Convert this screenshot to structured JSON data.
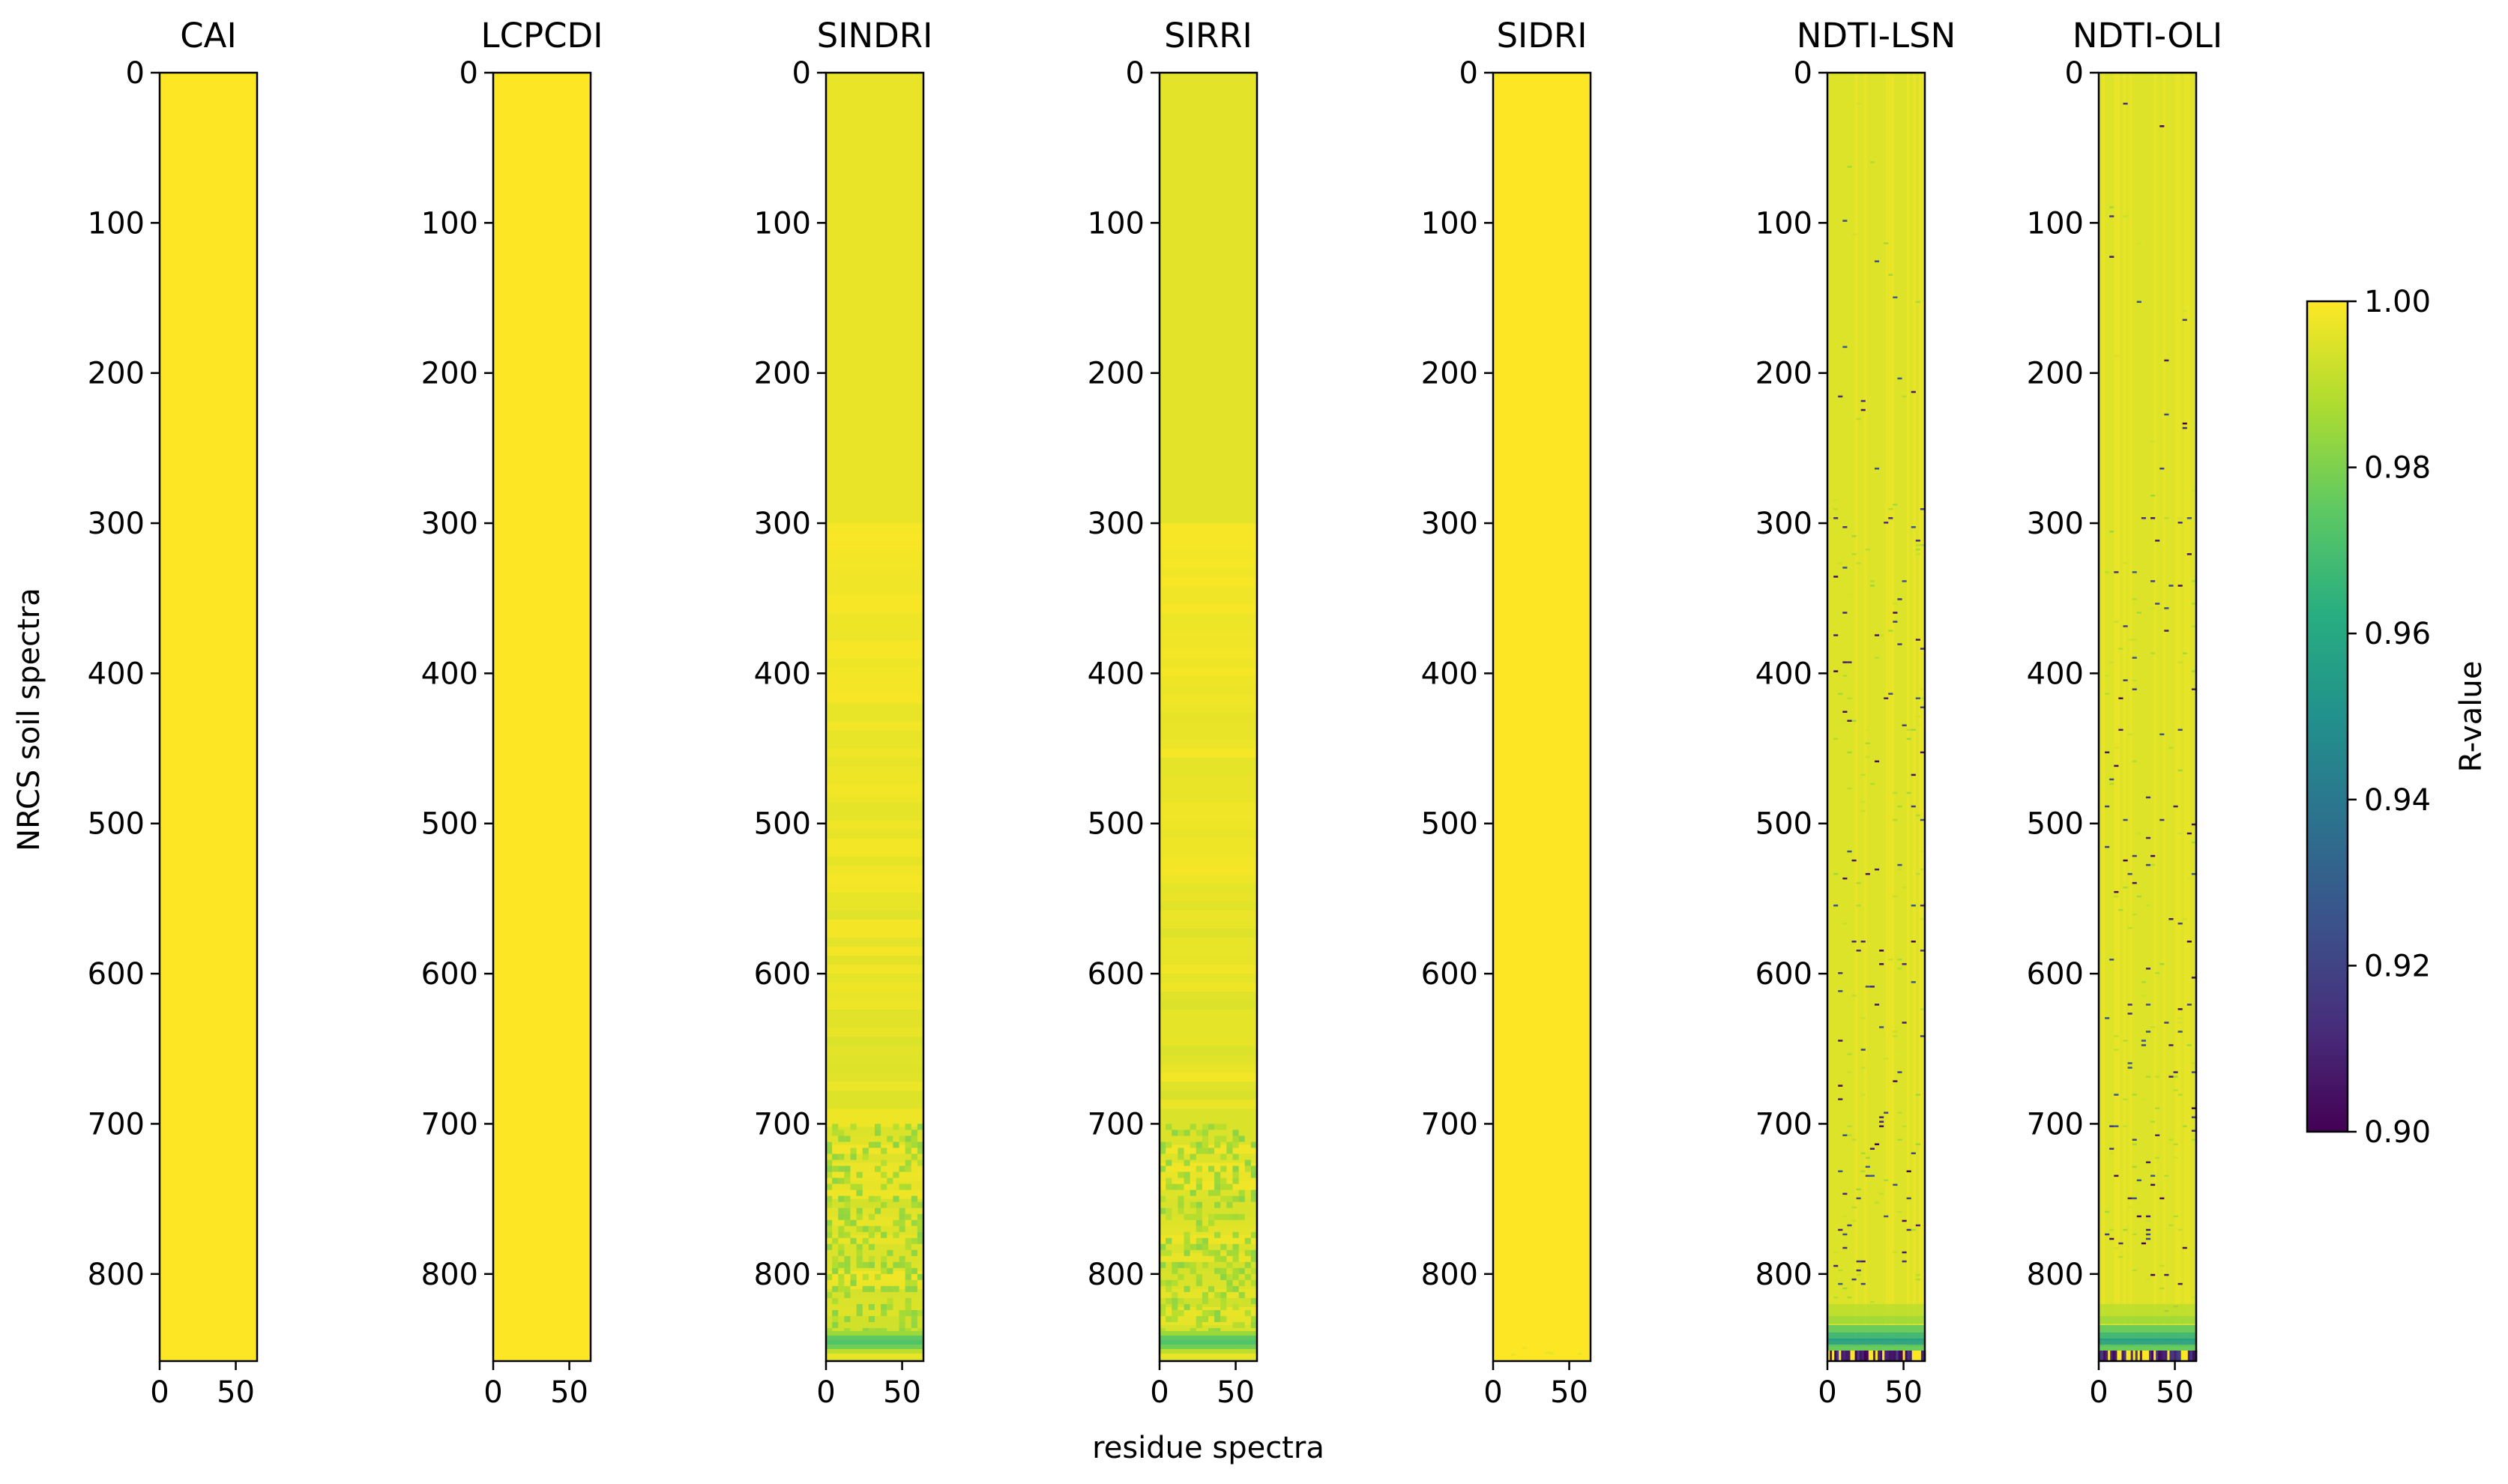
{
  "chart_data": {
    "type": "heatmap",
    "ylabel": "NRCS soil spectra",
    "xlabel": "residue spectra",
    "x_range": [
      0,
      64
    ],
    "y_range": [
      0,
      858
    ],
    "xticks": [
      0,
      50
    ],
    "yticks": [
      0,
      100,
      200,
      300,
      400,
      500,
      600,
      700,
      800
    ],
    "colormap": "viridis",
    "colorbar": {
      "label": "R-value",
      "range": [
        0.9,
        1.0
      ],
      "ticks": [
        "1.00",
        "0.98",
        "0.96",
        "0.94",
        "0.92",
        "0.90"
      ],
      "placement": "right"
    },
    "panels": [
      {
        "title": "CAI",
        "min_r": 1.0,
        "mean_r": 1.0,
        "pattern": "uniform"
      },
      {
        "title": "LCPCDI",
        "min_r": 1.0,
        "mean_r": 1.0,
        "pattern": "uniform"
      },
      {
        "title": "SINDRI",
        "min_r": 0.97,
        "mean_r": 0.997,
        "pattern": "gradual-decline-bottom-rows"
      },
      {
        "title": "SIRRI",
        "min_r": 0.97,
        "mean_r": 0.996,
        "pattern": "gradual-decline-bottom-rows"
      },
      {
        "title": "SIDRI",
        "min_r": 0.995,
        "mean_r": 1.0,
        "pattern": "near-uniform"
      },
      {
        "title": "NDTI-LSN",
        "min_r": 0.9,
        "mean_r": 0.995,
        "pattern": "scattered-low-rows-decline-bottom"
      },
      {
        "title": "NDTI-OLI",
        "min_r": 0.9,
        "mean_r": 0.995,
        "pattern": "scattered-low-rows-decline-bottom"
      }
    ]
  }
}
